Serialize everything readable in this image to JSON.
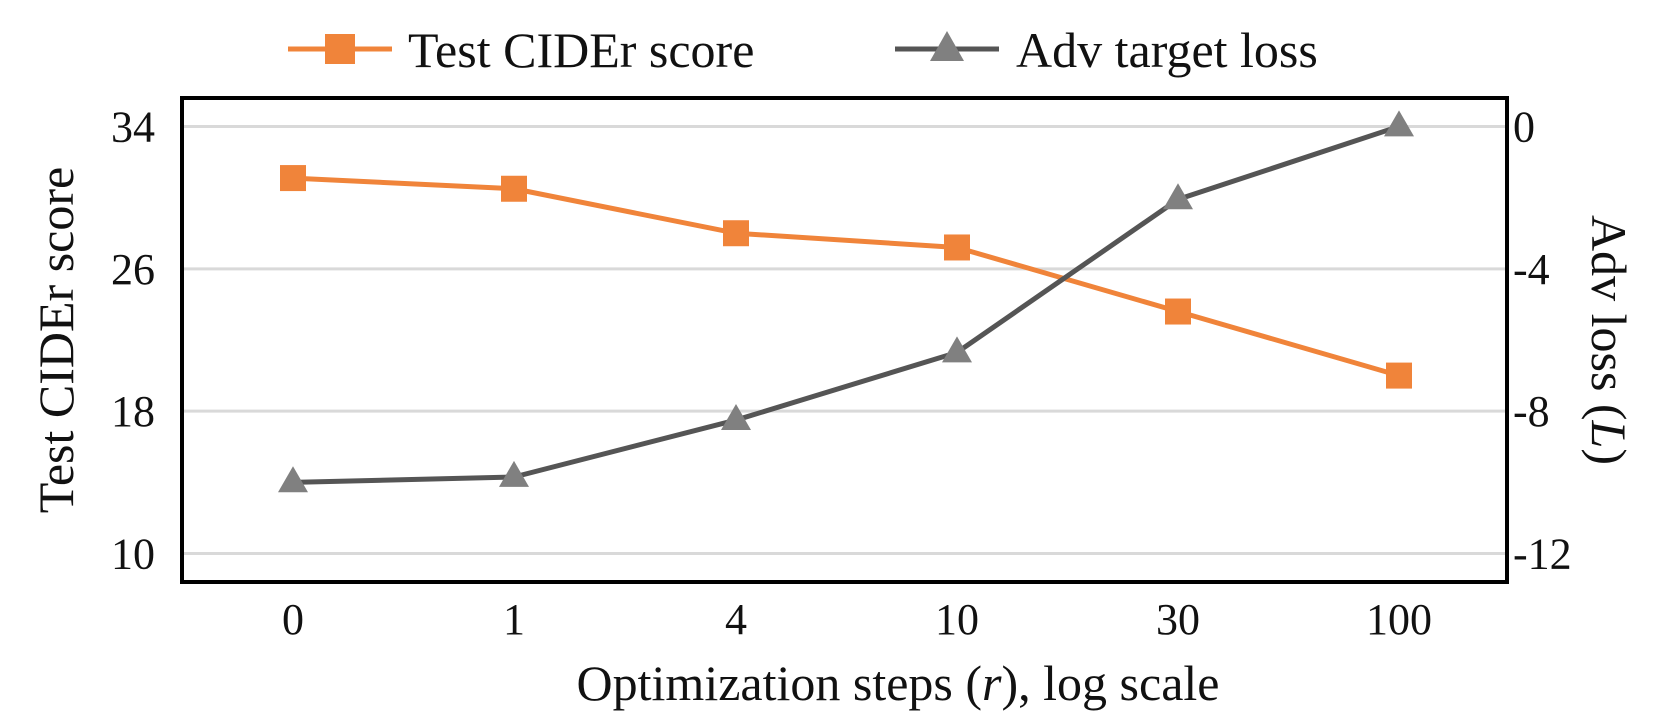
{
  "chart_data": {
    "type": "line",
    "categories": [
      "0",
      "1",
      "4",
      "10",
      "30",
      "100"
    ],
    "xlabel_parts": [
      "Optimization steps (",
      "r",
      "), log scale"
    ],
    "ylabel_left": "Test CIDEr score",
    "ylabel_right_parts": [
      "Adv loss (",
      "L",
      ")"
    ],
    "yticks_left": [
      "10",
      "18",
      "26",
      "34"
    ],
    "yticks_right": [
      "-12",
      "-8",
      "-4",
      "0"
    ],
    "ylim_left": [
      8.4,
      35.6
    ],
    "ylim_right": [
      -12.8,
      0.8
    ],
    "grid": true,
    "legend_position": "top",
    "series": [
      {
        "name": "Test CIDEr score",
        "axis": "left",
        "marker": "square",
        "color": "#f0843a",
        "values": [
          31.1,
          30.5,
          28.0,
          27.2,
          23.6,
          20.0
        ]
      },
      {
        "name": "Adv target loss",
        "axis": "right",
        "marker": "triangle",
        "color": "#555555",
        "marker_color": "#808080",
        "values": [
          -10.0,
          -9.85,
          -8.25,
          -6.35,
          -2.05,
          0.0
        ]
      }
    ]
  }
}
